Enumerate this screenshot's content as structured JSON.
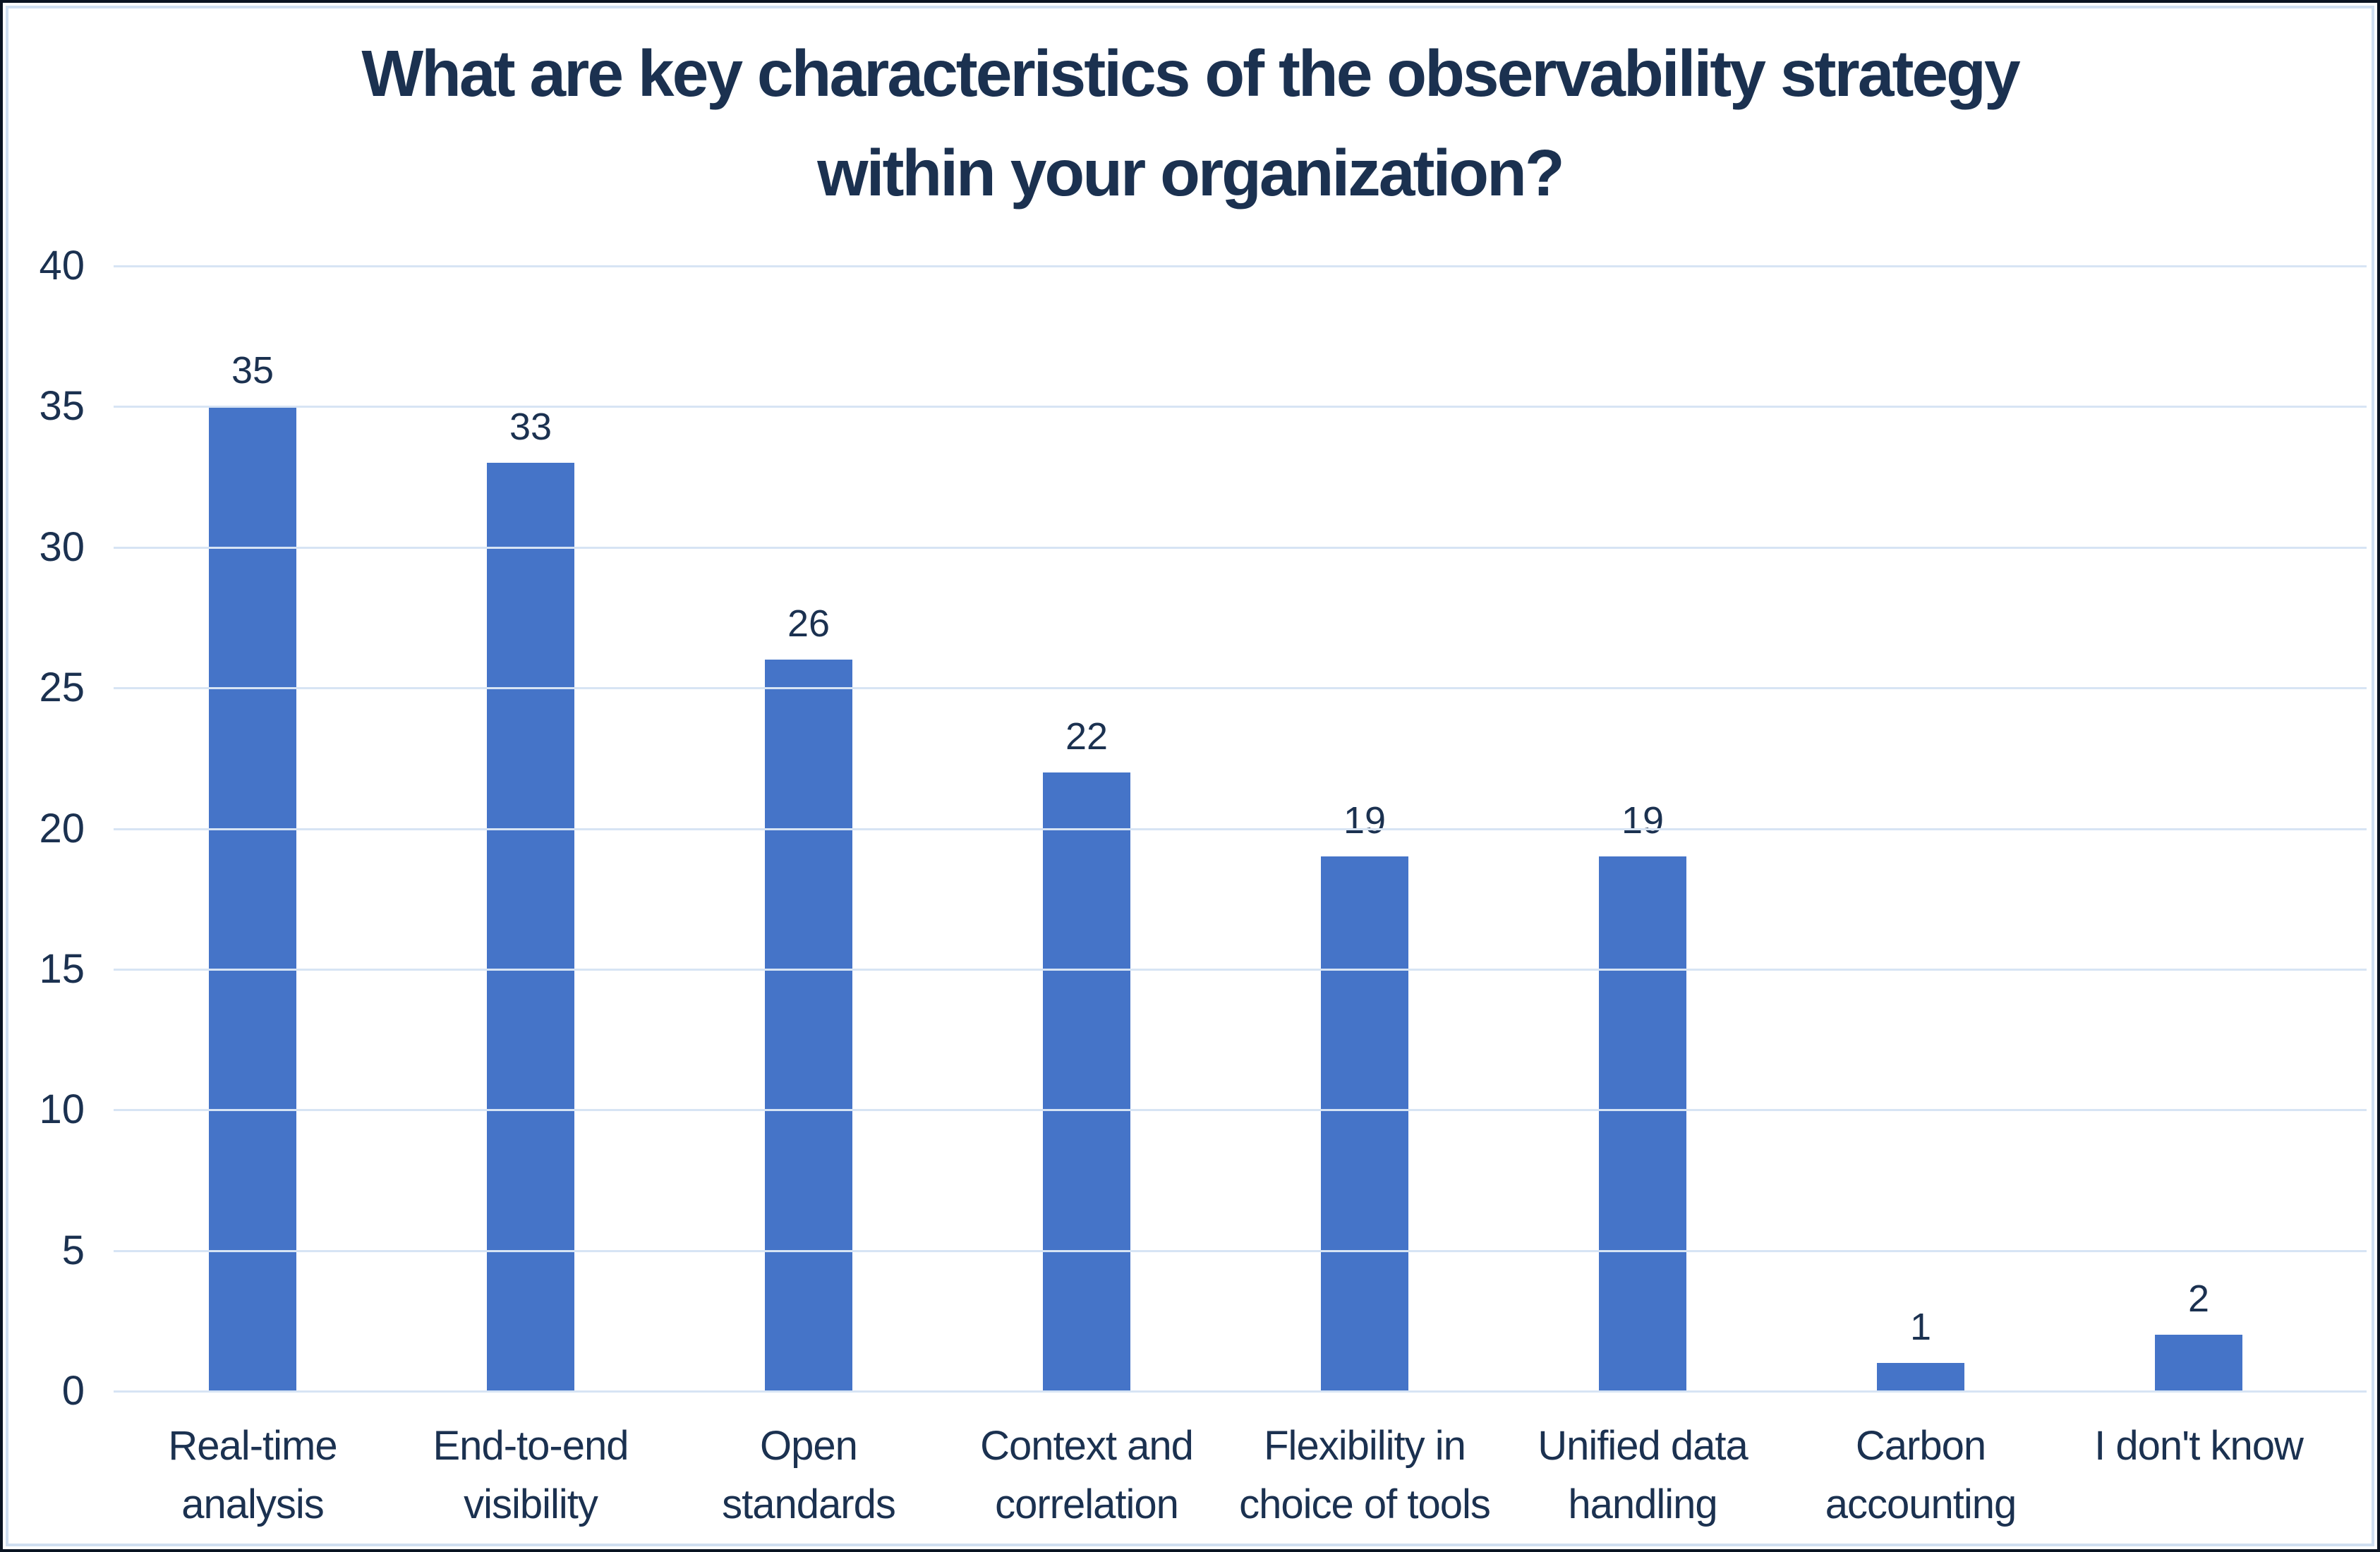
{
  "chart_data": {
    "type": "bar",
    "title": "What are key characteristics of the observability strategy within your organization?",
    "title_lines": [
      "What are key characteristics of the observability strategy",
      "within your organization?"
    ],
    "categories": [
      "Real-time\nanalysis",
      "End-to-end\nvisibility",
      "Open\nstandards",
      "Context and\ncorrelation",
      "Flexibility in\nchoice of tools",
      "Unified data\nhandling",
      "Carbon\naccounting",
      "I don't know"
    ],
    "values": [
      35,
      33,
      26,
      22,
      19,
      19,
      1,
      2
    ],
    "data_labels": [
      "35",
      "33",
      "26",
      "22",
      "19",
      "19",
      "1",
      "2"
    ],
    "yticks": [
      0,
      5,
      10,
      15,
      20,
      25,
      30,
      35,
      40
    ],
    "ylim": [
      0,
      40
    ],
    "xlabel": "",
    "ylabel": "",
    "grid": true,
    "legend": false,
    "bar_color": "#4574c8",
    "text_color": "#1b3150",
    "gridline_color": "#d7e4f4"
  },
  "colors": {
    "bar": "#4574c8",
    "navy": "#1b3150",
    "grid": "#d7e4f4",
    "frame": "#cfdff1",
    "edge": "#0a1422",
    "bg": "#ffffff"
  }
}
